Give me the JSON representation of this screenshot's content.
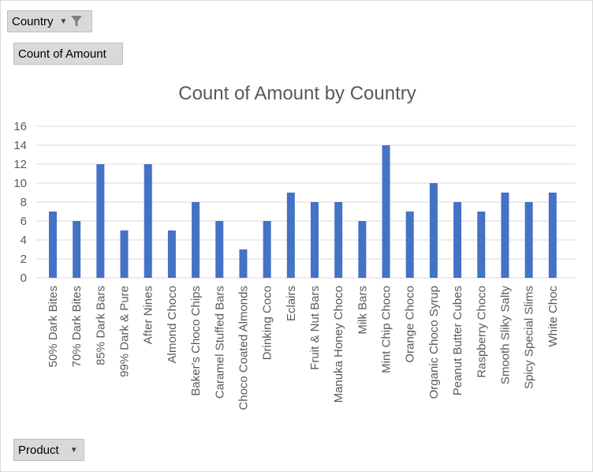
{
  "filters": {
    "country_label": "Country",
    "measure_label": "Count of Amount",
    "product_label": "Product"
  },
  "icons": {
    "dropdown": "dropdown-arrow-icon",
    "filter": "filter-funnel-icon"
  },
  "colors": {
    "bar": "#4472c4",
    "axis_text": "#595959",
    "title": "#595959",
    "gridline": "#d9d9d9"
  },
  "chart_data": {
    "type": "bar",
    "title": "Count of Amount by Country",
    "xlabel": "",
    "ylabel": "",
    "ylim": [
      0,
      16
    ],
    "yticks": [
      0,
      2,
      4,
      6,
      8,
      10,
      12,
      14,
      16
    ],
    "grid": true,
    "legend": "none",
    "categories": [
      "50% Dark Bites",
      "70% Dark Bites",
      "85% Dark Bars",
      "99% Dark & Pure",
      "After Nines",
      "Almond Choco",
      "Baker's Choco Chips",
      "Caramel Stuffed Bars",
      "Choco Coated Almonds",
      "Drinking Coco",
      "Eclairs",
      "Fruit & Nut Bars",
      "Manuka Honey Choco",
      "Milk Bars",
      "Mint Chip Choco",
      "Orange Choco",
      "Organic Choco Syrup",
      "Peanut Butter Cubes",
      "Raspberry Choco",
      "Smooth Sliky Salty",
      "Spicy Special Slims",
      "White Choc"
    ],
    "values": [
      7,
      6,
      12,
      5,
      12,
      5,
      8,
      6,
      3,
      6,
      9,
      8,
      8,
      6,
      14,
      7,
      10,
      8,
      7,
      9,
      8,
      9
    ]
  }
}
